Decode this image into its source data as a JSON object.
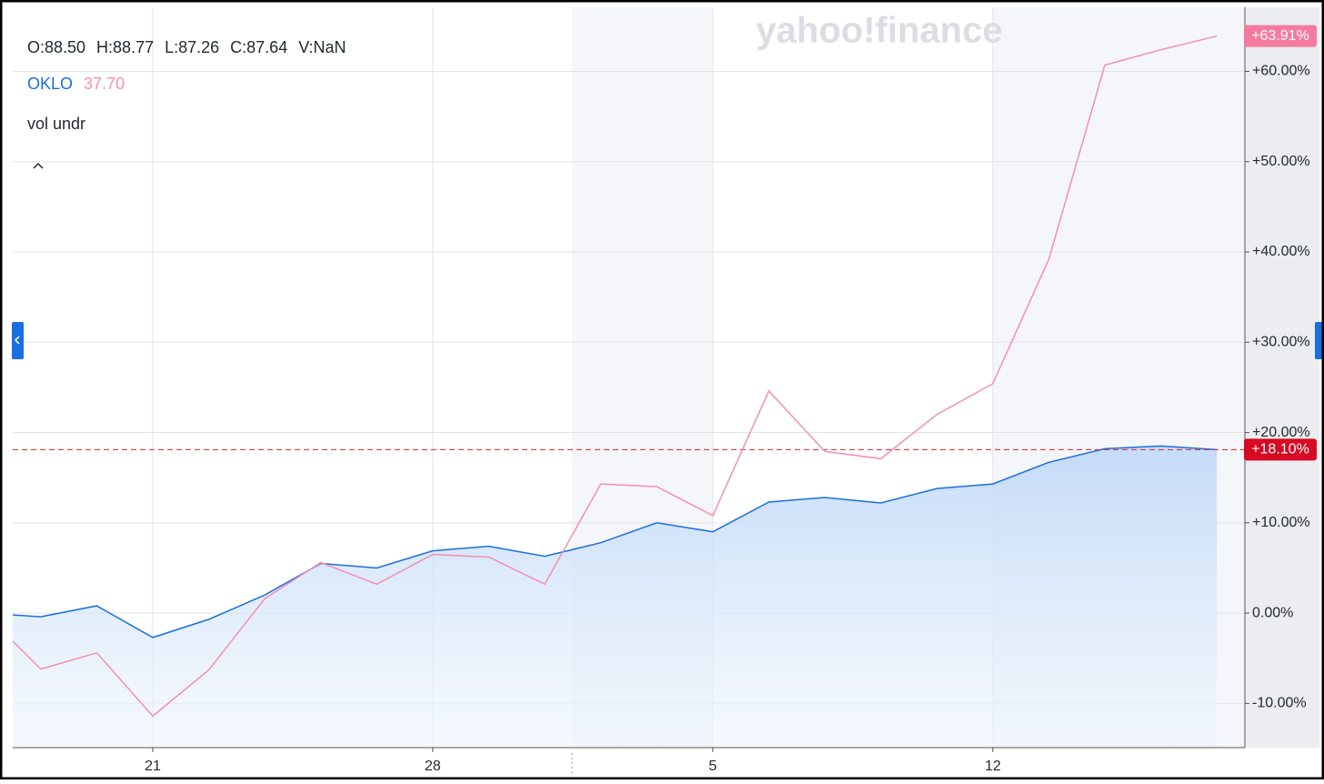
{
  "header": {
    "ohlcv": [
      "O:88.50",
      "H:88.77",
      "L:87.26",
      "C:87.64",
      "V:NaN"
    ],
    "volume_label": "vol undr",
    "watermark": "yahoo!finance"
  },
  "chart_data": {
    "type": "line",
    "x": [
      -0.5,
      0,
      1,
      2,
      3,
      4,
      5,
      6,
      7,
      8,
      9,
      10,
      11,
      12,
      13,
      14,
      15,
      16,
      17,
      18,
      19,
      20,
      21
    ],
    "xlim": [
      -0.5,
      21.5
    ],
    "xticks": [
      {
        "value": 2,
        "label": "21"
      },
      {
        "value": 7,
        "label": "28"
      },
      {
        "value": 12,
        "label": "5"
      },
      {
        "value": 17,
        "label": "12"
      }
    ],
    "ylim": [
      -14.9,
      67.1
    ],
    "yticks": [
      {
        "value": 60,
        "label": "+60.00%"
      },
      {
        "value": 50,
        "label": "+50.00%"
      },
      {
        "value": 40,
        "label": "+40.00%"
      },
      {
        "value": 30,
        "label": "+30.00%"
      },
      {
        "value": 20,
        "label": "+20.00%"
      },
      {
        "value": 10,
        "label": "+10.00%"
      },
      {
        "value": 0,
        "label": "0.00%"
      },
      {
        "value": -10,
        "label": "-10.00%"
      }
    ],
    "grid": true,
    "series": [
      {
        "color": "#1a6ee3",
        "area": true,
        "values": [
          -0.2,
          -0.4,
          0.8,
          -2.7,
          -0.7,
          2.0,
          5.5,
          5.0,
          6.9,
          7.4,
          6.3,
          7.8,
          10.0,
          9.0,
          12.3,
          12.8,
          12.2,
          13.8,
          14.3,
          16.7,
          18.2,
          18.5,
          18.1
        ],
        "value_labels": [
          null,
          null,
          null,
          null,
          null,
          null,
          null,
          null,
          null,
          null,
          null,
          null,
          null,
          null,
          null,
          null,
          null,
          null,
          null,
          null,
          null,
          null,
          "+18.10%"
        ],
        "label_color": "#d60a22"
      },
      {
        "name": "OKLO",
        "legend_value": 37.7,
        "color": "#f48fb1",
        "area": false,
        "values": [
          -3.1,
          -6.2,
          -4.4,
          -11.4,
          -6.3,
          1.6,
          5.6,
          3.2,
          6.5,
          6.2,
          3.2,
          14.3,
          14.0,
          10.8,
          24.6,
          17.9,
          17.1,
          22.0,
          25.4,
          39.2,
          60.7,
          62.4,
          63.91
        ],
        "value_labels": [
          null,
          null,
          null,
          null,
          null,
          null,
          null,
          null,
          null,
          null,
          null,
          null,
          null,
          null,
          null,
          null,
          null,
          null,
          null,
          null,
          null,
          null,
          "+63.91%"
        ],
        "label_color": "#f47b9f"
      }
    ]
  }
}
